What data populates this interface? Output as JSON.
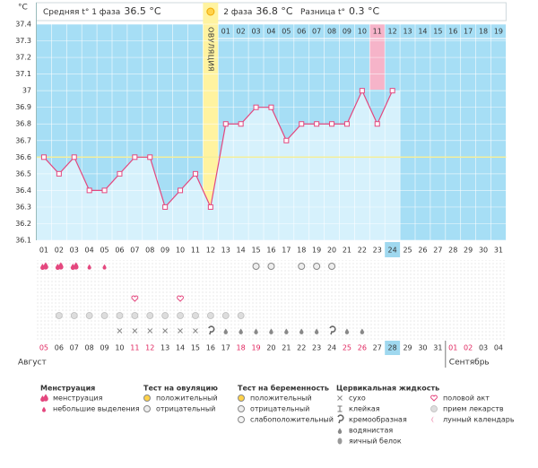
{
  "chart_data": {
    "type": "line",
    "y_axis_label": "°C",
    "header": {
      "phase1_label": "Средняя t° 1 фаза",
      "phase1_value": "36.5 °C",
      "phase2_label": "2 фаза",
      "phase2_value": "36.8 °C",
      "diff_label": "Разница t°",
      "diff_value": "0.3 °C"
    },
    "ovulation_label": "ОВУЛЯЦИЯ",
    "phase2_days": [
      "01",
      "02",
      "03",
      "04",
      "05",
      "06",
      "07",
      "08",
      "09",
      "10",
      "11",
      "12",
      "13",
      "14",
      "15",
      "16",
      "17",
      "18",
      "19"
    ],
    "categories": [
      "01",
      "02",
      "03",
      "04",
      "05",
      "06",
      "07",
      "08",
      "09",
      "10",
      "11",
      "12",
      "13",
      "14",
      "15",
      "16",
      "17",
      "18",
      "19",
      "20",
      "21",
      "22",
      "23",
      "24",
      "25",
      "26",
      "27",
      "28",
      "29",
      "30",
      "31"
    ],
    "series": [
      {
        "name": "t°",
        "color": "#e4477e",
        "values": [
          36.6,
          36.5,
          36.6,
          36.4,
          36.4,
          36.5,
          36.6,
          36.6,
          36.3,
          36.4,
          36.5,
          36.3,
          36.8,
          36.8,
          36.9,
          36.9,
          36.7,
          36.8,
          36.8,
          36.8,
          36.8,
          37.0,
          36.8,
          37.0,
          null,
          null,
          null,
          null,
          null,
          null,
          null
        ]
      }
    ],
    "coverline": 36.6,
    "ylim": [
      36.1,
      37.4
    ],
    "yticks": [
      36.1,
      36.2,
      36.3,
      36.4,
      36.5,
      36.6,
      36.7,
      36.8,
      36.9,
      37,
      37.1,
      37.2,
      37.3,
      37.4
    ],
    "grid": true,
    "dates": [
      "05",
      "06",
      "07",
      "08",
      "09",
      "10",
      "11",
      "12",
      "13",
      "14",
      "15",
      "16",
      "17",
      "18",
      "19",
      "20",
      "21",
      "22",
      "23",
      "24",
      "25",
      "26",
      "27",
      "28",
      "29",
      "30",
      "31",
      "01",
      "02",
      "03",
      "04"
    ],
    "date_colors": [
      "#e0245e",
      "#333",
      "#333",
      "#333",
      "#333",
      "#333",
      "#e0245e",
      "#e0245e",
      "#333",
      "#333",
      "#333",
      "#333",
      "#333",
      "#e0245e",
      "#e0245e",
      "#333",
      "#333",
      "#333",
      "#333",
      "#333",
      "#e0245e",
      "#e0245e",
      "#333",
      "#333",
      "#333",
      "#333",
      "#333",
      "#e0245e",
      "#e0245e",
      "#333",
      "#333"
    ],
    "months": [
      "Август",
      "Сентябрь"
    ],
    "legend": [
      {
        "title": "Менструация",
        "items": [
          {
            "name": "менструация",
            "days": [
              "01",
              "02",
              "03"
            ]
          },
          {
            "name": "небольшие выделения",
            "days": [
              "04",
              "05"
            ]
          }
        ]
      },
      {
        "title": "Тест на овуляцию",
        "items": [
          {
            "name": "положительный",
            "days": []
          },
          {
            "name": "отрицательный",
            "days": [
              "15",
              "16",
              "18",
              "19",
              "20"
            ]
          }
        ]
      },
      {
        "title": "Тест на беременность",
        "items": [
          {
            "name": "положительный",
            "days": []
          },
          {
            "name": "отрицательный",
            "days": []
          },
          {
            "name": "слабоположительный",
            "days": []
          }
        ]
      },
      {
        "title": "Цервикальная жидкость",
        "items": [
          {
            "name": "сухо",
            "days": [
              "06",
              "07",
              "08",
              "09",
              "10",
              "11"
            ]
          },
          {
            "name": "клейкая",
            "days": []
          },
          {
            "name": "кремообразная",
            "days": [
              "12",
              "20"
            ]
          },
          {
            "name": "водянистая",
            "days": [
              "13",
              "14",
              "15",
              "16",
              "17",
              "18",
              "19",
              "21",
              "22"
            ]
          },
          {
            "name": "яичный белок",
            "days": []
          }
        ]
      },
      {
        "items": [
          {
            "name": "половой акт",
            "days": [
              "07",
              "10"
            ]
          },
          {
            "name": "прием лекарств",
            "days": [
              "02",
              "03",
              "04",
              "05",
              "06",
              "07",
              "08",
              "09",
              "10",
              "11",
              "12",
              "13",
              "14"
            ]
          },
          {
            "name": "лунный календарь",
            "days": []
          }
        ]
      }
    ]
  }
}
